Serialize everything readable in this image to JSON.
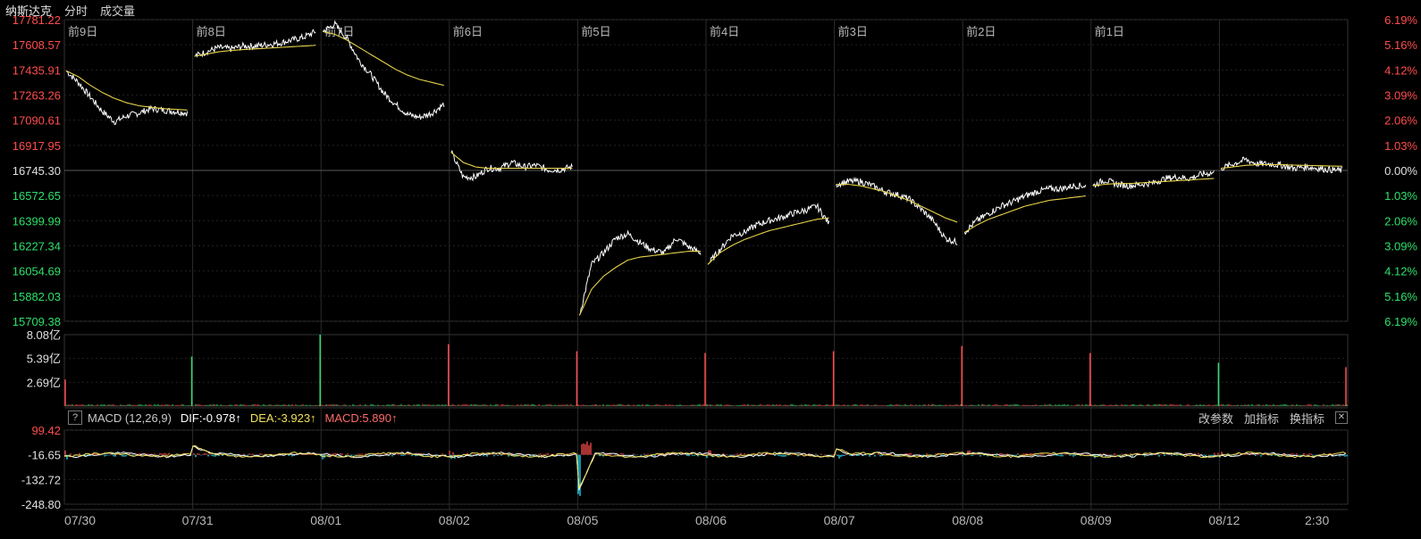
{
  "header": {
    "name": "纳斯达克",
    "tab_fenshi": "分时",
    "tab_volume": "成交量"
  },
  "chart_data": [
    {
      "type": "line",
      "title": "纳斯达克 分时",
      "y_ticks_left": [
        "17781.22",
        "17608.57",
        "17435.91",
        "17263.26",
        "17090.61",
        "16917.95",
        "16745.30",
        "16572.65",
        "16399.99",
        "16227.34",
        "16054.69",
        "15882.03",
        "15709.38"
      ],
      "y_ticks_right": [
        "6.19%",
        "5.16%",
        "4.12%",
        "3.09%",
        "2.06%",
        "1.03%",
        "0.00%",
        "1.03%",
        "2.06%",
        "3.09%",
        "4.12%",
        "5.16%",
        "6.19%"
      ],
      "ylim": [
        15709.38,
        17781.22
      ],
      "baseline": 16745.3,
      "day_labels": [
        "前9日",
        "前8日",
        "前7日",
        "前6日",
        "前5日",
        "前4日",
        "前3日",
        "前2日",
        "前1日"
      ],
      "x_date_labels": [
        "07/30",
        "07/31",
        "08/01",
        "08/02",
        "08/05",
        "08/06",
        "08/07",
        "08/08",
        "08/09",
        "08/12",
        "2:30"
      ],
      "series": [
        {
          "name": "价格",
          "color": "#ffffff",
          "days": [
            [
              17430,
              17350,
              17250,
              17150,
              17080,
              17120,
              17140,
              17170,
              17160,
              17150,
              17140
            ],
            [
              17530,
              17560,
              17590,
              17580,
              17600,
              17600,
              17610,
              17620,
              17640,
              17660,
              17700
            ],
            [
              17700,
              17750,
              17650,
              17500,
              17400,
              17280,
              17200,
              17130,
              17110,
              17140,
              17200
            ],
            [
              16870,
              16700,
              16700,
              16760,
              16760,
              16800,
              16770,
              16780,
              16750,
              16750,
              16770
            ],
            [
              15750,
              16100,
              16180,
              16280,
              16310,
              16250,
              16200,
              16180,
              16280,
              16220,
              16180
            ],
            [
              16100,
              16200,
              16300,
              16320,
              16370,
              16400,
              16420,
              16450,
              16470,
              16500,
              16380
            ],
            [
              16650,
              16670,
              16670,
              16640,
              16600,
              16580,
              16550,
              16480,
              16400,
              16280,
              16250
            ],
            [
              16320,
              16400,
              16450,
              16500,
              16530,
              16570,
              16600,
              16620,
              16620,
              16640,
              16640
            ],
            [
              16640,
              16680,
              16650,
              16640,
              16650,
              16660,
              16690,
              16700,
              16690,
              16720,
              16730
            ],
            [
              16760,
              16790,
              16820,
              16790,
              16790,
              16780,
              16760,
              16770,
              16760,
              16750,
              16745
            ]
          ]
        },
        {
          "name": "均价",
          "color": "#e6d24a",
          "days": [
            [
              17430,
              17390,
              17330,
              17280,
              17240,
              17210,
              17190,
              17180,
              17170,
              17165,
              17160
            ],
            [
              17530,
              17545,
              17560,
              17570,
              17575,
              17580,
              17585,
              17590,
              17595,
              17600,
              17605
            ],
            [
              17700,
              17680,
              17640,
              17590,
              17540,
              17490,
              17440,
              17400,
              17370,
              17350,
              17330
            ],
            [
              16870,
              16800,
              16770,
              16760,
              16760,
              16760,
              16760,
              16760,
              16760,
              16760,
              16760
            ],
            [
              15750,
              15930,
              16020,
              16080,
              16130,
              16150,
              16160,
              16170,
              16180,
              16190,
              16190
            ],
            [
              16100,
              16180,
              16230,
              16270,
              16300,
              16330,
              16350,
              16370,
              16390,
              16410,
              16420
            ],
            [
              16650,
              16650,
              16640,
              16620,
              16600,
              16570,
              16540,
              16500,
              16460,
              16420,
              16390
            ],
            [
              16320,
              16370,
              16410,
              16440,
              16470,
              16500,
              16520,
              16540,
              16550,
              16560,
              16570
            ],
            [
              16640,
              16650,
              16655,
              16655,
              16660,
              16665,
              16670,
              16675,
              16680,
              16685,
              16690
            ],
            [
              16760,
              16770,
              16780,
              16785,
              16785,
              16785,
              16782,
              16780,
              16778,
              16776,
              16774
            ]
          ]
        }
      ]
    },
    {
      "type": "bar",
      "title": "成交量",
      "y_ticks": [
        "8.08亿",
        "5.39亿",
        "2.69亿"
      ],
      "ylim": [
        0,
        8.08
      ],
      "unit": "亿",
      "open_spikes": [
        3.0,
        5.6,
        8.08,
        7.0,
        6.2,
        6.0,
        6.2,
        6.8,
        6.0,
        4.9
      ],
      "close_spike": 4.4,
      "open_colors": [
        "red",
        "green",
        "green",
        "red",
        "red",
        "red",
        "red",
        "red",
        "red",
        "green"
      ]
    },
    {
      "type": "line",
      "title": "MACD",
      "y_ticks": [
        "99.42",
        "-16.65",
        "-132.72",
        "-248.80"
      ],
      "ylim": [
        -248.8,
        99.42
      ]
    }
  ],
  "macd_bar": {
    "help": "?",
    "label": "MACD (12,26,9)",
    "dif": "DIF:-0.978↑",
    "dea": "DEA:-3.923↑",
    "macd": "MACD:5.890↑",
    "btn_params": "改参数",
    "btn_add": "加指标",
    "btn_switch": "换指标",
    "btn_close": "✕"
  },
  "colors": {
    "up": "#ff4d4d",
    "down": "#2ee06a",
    "price": "#ffffff",
    "avg": "#e6d24a",
    "dif": "#ffffff",
    "dea": "#f0e05a",
    "macd_neg": "#29e0ff",
    "grid": "#2a2a2a"
  }
}
